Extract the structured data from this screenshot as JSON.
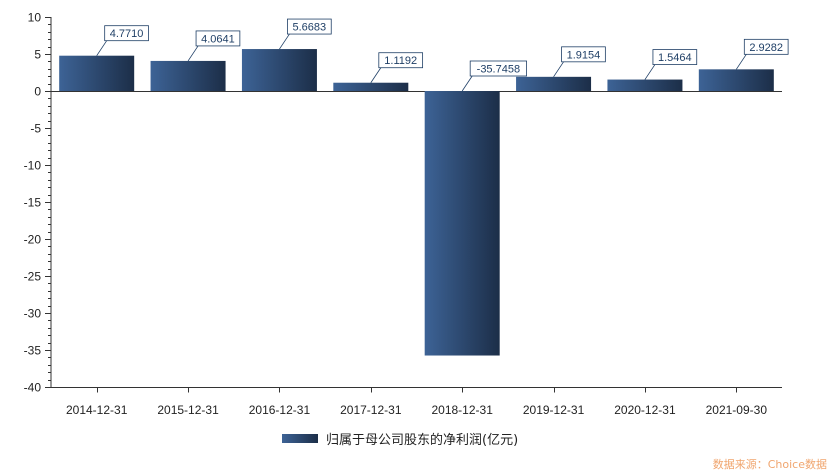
{
  "chart_data": {
    "type": "bar",
    "categories": [
      "2014-12-31",
      "2015-12-31",
      "2016-12-31",
      "2017-12-31",
      "2018-12-31",
      "2019-12-31",
      "2020-12-31",
      "2021-09-30"
    ],
    "series": [
      {
        "name": "归属于母公司股东的净利润(亿元)",
        "values": [
          4.771,
          4.0641,
          5.6683,
          1.1192,
          -35.7458,
          1.9154,
          1.5464,
          2.9282
        ],
        "labels": [
          "4.7710",
          "4.0641",
          "5.6683",
          "1.1192",
          "-35.7458",
          "1.9154",
          "1.5464",
          "2.9282"
        ]
      }
    ],
    "ylim": [
      -40,
      10
    ],
    "yticks": [
      10,
      5,
      0,
      -5,
      -10,
      -15,
      -20,
      -25,
      -30,
      -35,
      -40
    ],
    "title": "",
    "xlabel": "",
    "ylabel": "",
    "legend": "bottom-center",
    "grid": false,
    "colors": {
      "bar_light": "#3d6396",
      "bar_dark": "#1c2e48",
      "label_border": "#1f3f66"
    }
  },
  "source_text": "数据来源：Choice数据"
}
